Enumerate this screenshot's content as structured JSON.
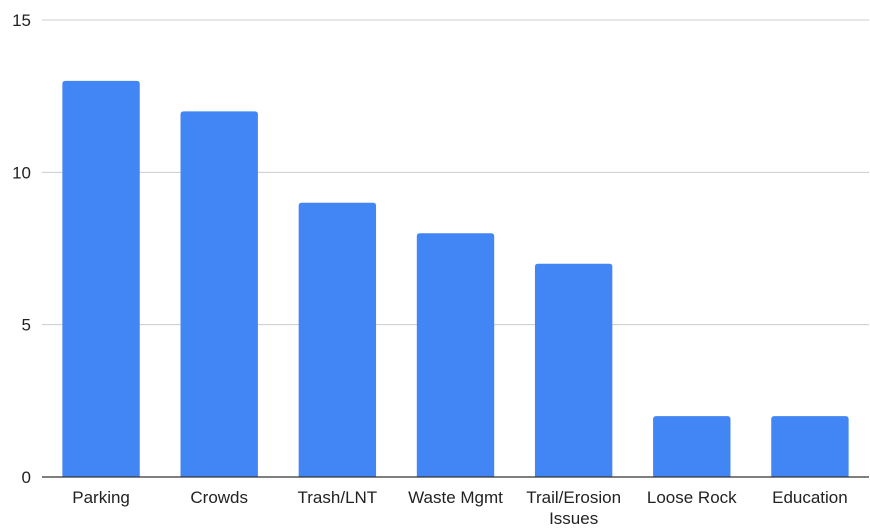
{
  "chart_data": {
    "type": "bar",
    "title": "",
    "xlabel": "",
    "ylabel": "",
    "categories": [
      "Parking",
      "Crowds",
      "Trash/LNT",
      "Waste Mgmt",
      "Trail/Erosion Issues",
      "Loose Rock",
      "Education"
    ],
    "category_label_lines": [
      [
        "Parking"
      ],
      [
        "Crowds"
      ],
      [
        "Trash/LNT"
      ],
      [
        "Waste Mgmt"
      ],
      [
        "Trail/Erosion",
        "Issues"
      ],
      [
        "Loose Rock"
      ],
      [
        "Education"
      ]
    ],
    "values": [
      13,
      12,
      9,
      8,
      7,
      2,
      2
    ],
    "ylim": [
      0,
      15
    ],
    "yticks": [
      0,
      5,
      10,
      15
    ],
    "grid": true,
    "legend": "none",
    "bar_color": "#4285f4"
  }
}
